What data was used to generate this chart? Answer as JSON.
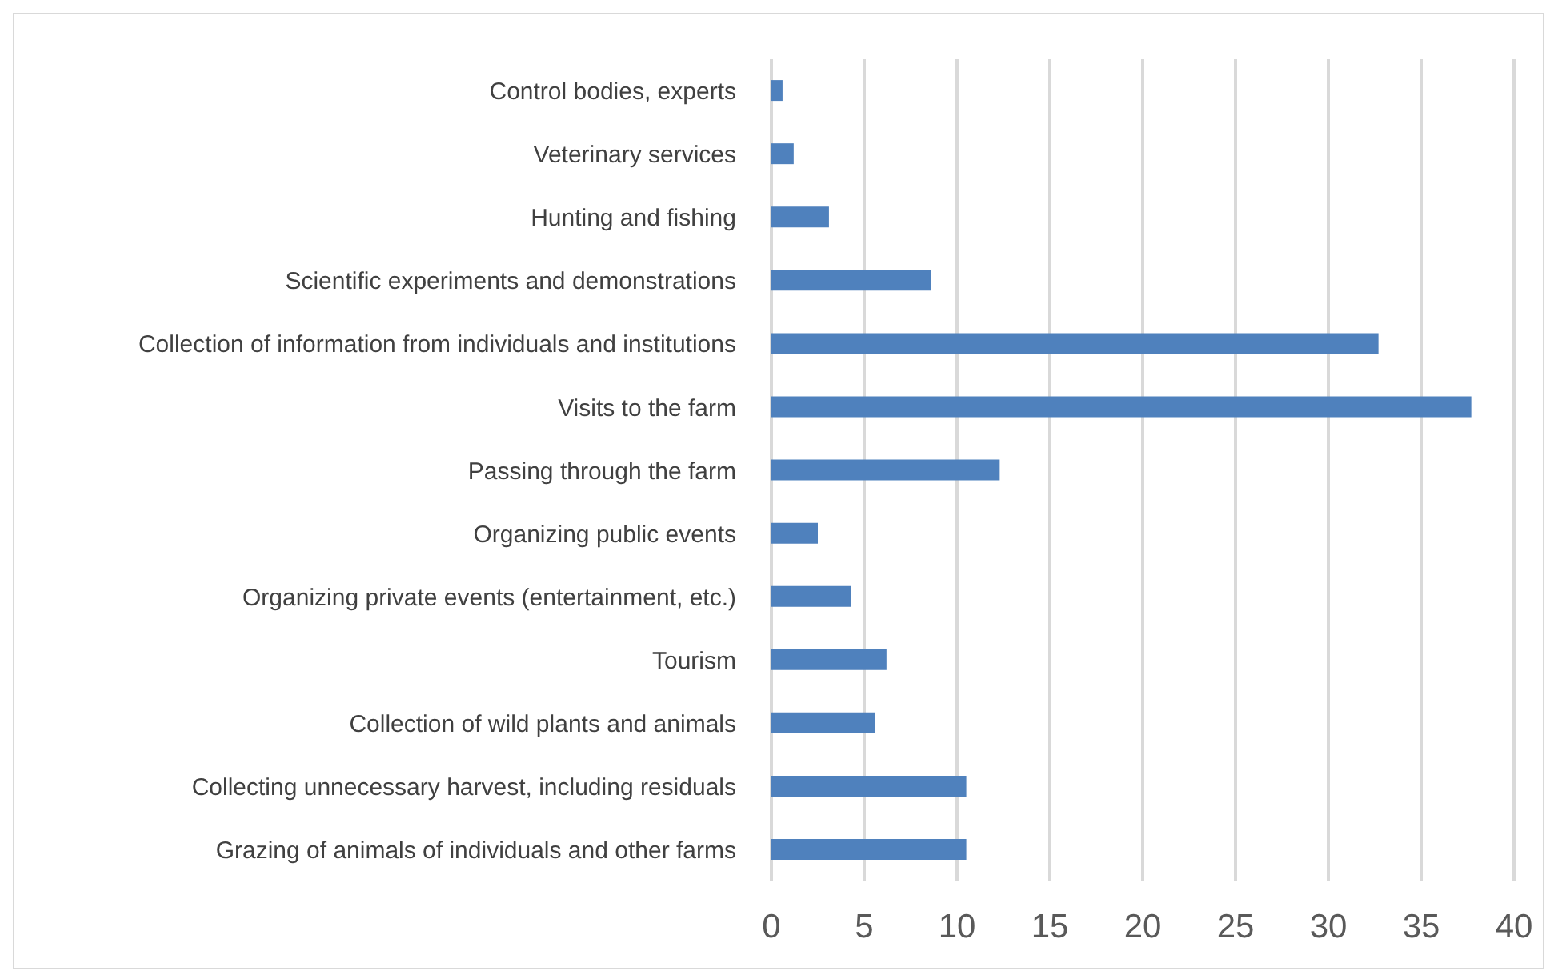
{
  "chart_data": {
    "type": "bar",
    "orientation": "horizontal",
    "categories": [
      "Control bodies, experts",
      "Veterinary services",
      "Hunting and fishing",
      "Scientific experiments and demonstrations",
      "Collection of information from individuals and institutions",
      "Visits to the farm",
      "Passing through the farm",
      "Organizing public events",
      "Organizing private events (entertainment, etc.)",
      "Tourism",
      "Collection of wild plants and animals",
      "Collecting unnecessary harvest, including residuals",
      "Grazing of animals of individuals and other farms"
    ],
    "values": [
      0.6,
      1.2,
      3.1,
      8.6,
      32.7,
      37.7,
      12.3,
      2.5,
      4.3,
      6.2,
      5.6,
      10.5,
      10.5
    ],
    "color": "#4f81bd",
    "xlim": [
      0,
      40
    ],
    "xticks": [
      0,
      5,
      10,
      15,
      20,
      25,
      30,
      35,
      40
    ],
    "grid": "x"
  }
}
